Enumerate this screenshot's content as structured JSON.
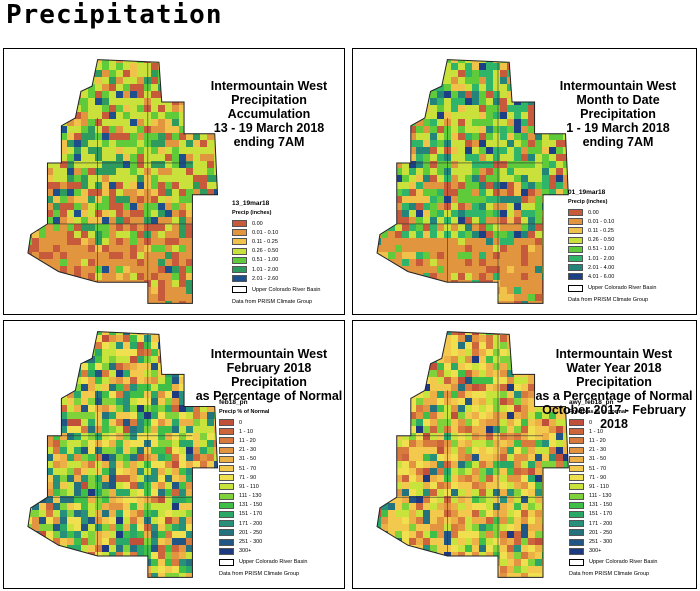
{
  "page_title": "Precipitation",
  "panels": [
    {
      "id": "acc",
      "title": [
        "Intermountain West",
        "Precipitation Accumulation",
        "13 - 19 March 2018",
        "ending 7AM"
      ],
      "legend_name": "13_19mar18",
      "legend_unit": "Precip (inches)",
      "classes": [
        "0.00",
        "0.01 - 0.10",
        "0.11 - 0.25",
        "0.26 - 0.50",
        "0.51 - 1.00",
        "1.01 - 2.00",
        "2.01 - 2.60"
      ],
      "colors": [
        "#c85a3c",
        "#e0953e",
        "#f0c24a",
        "#c9e13a",
        "#5fcb3a",
        "#2e9a5e",
        "#1d4f8c"
      ],
      "basin_label": "Upper Colorado River Basin",
      "source": "Data from PRISM Climate Group"
    },
    {
      "id": "mtd",
      "title": [
        "Intermountain West",
        "Month to Date Precipitation",
        "1 - 19 March 2018",
        "ending 7AM"
      ],
      "legend_name": "01_19mar18",
      "legend_unit": "Precip (inches)",
      "classes": [
        "0.00",
        "0.01 - 0.10",
        "0.11 - 0.25",
        "0.26 - 0.50",
        "0.51 - 1.00",
        "1.01 - 2.00",
        "2.01 - 4.00",
        "4.01 - 6.00"
      ],
      "colors": [
        "#c85a3c",
        "#e0953e",
        "#f0c24a",
        "#c9e13a",
        "#5fcb3a",
        "#2fb56a",
        "#23857a",
        "#1d3f86"
      ],
      "basin_label": "Upper Colorado River Basin",
      "source": "Data from PRISM Climate Group"
    },
    {
      "id": "feb",
      "title": [
        "Intermountain West",
        "February 2018 Precipitation",
        "as  Percentage of Normal"
      ],
      "legend_name": "feb18_pn",
      "legend_unit": "Precip % of Normal",
      "classes": [
        "0",
        "1 - 10",
        "11 - 20",
        "21 - 30",
        "31 - 50",
        "51 - 70",
        "71 - 90",
        "91 - 110",
        "111 - 130",
        "131 - 150",
        "151 - 170",
        "171 - 200",
        "201 - 250",
        "251 - 300",
        "300+"
      ],
      "colors": [
        "#c0503a",
        "#cc643c",
        "#d87a3e",
        "#e29440",
        "#ecb046",
        "#f2c94c",
        "#f0e050",
        "#c8e43c",
        "#7fd23a",
        "#3fbf48",
        "#2aa868",
        "#26907a",
        "#23727e",
        "#215584",
        "#1d3a80"
      ],
      "basin_label": "Upper Colorado River Basin",
      "source": "Data from PRISM Climate Group"
    },
    {
      "id": "wy",
      "title": [
        "Intermountain West",
        "Water Year 2018 Precipitation",
        "as a Percentage of Normal",
        "October 2017 - February 2018"
      ],
      "legend_name": "awy_feb18_pn",
      "legend_unit": "Precip as % of normal",
      "classes": [
        "0",
        "1 - 10",
        "11 - 20",
        "21 - 30",
        "31 - 50",
        "51 - 70",
        "71 - 90",
        "91 - 110",
        "111 - 130",
        "131 - 150",
        "151 - 170",
        "171 - 200",
        "201 - 250",
        "251 - 300",
        "300+"
      ],
      "colors": [
        "#c0503a",
        "#cc643c",
        "#d87a3e",
        "#e29440",
        "#ecb046",
        "#f2c94c",
        "#f0e050",
        "#c8e43c",
        "#7fd23a",
        "#3fbf48",
        "#2aa868",
        "#26907a",
        "#23727e",
        "#215584",
        "#1d3a80"
      ],
      "basin_label": "Upper Colorado River Basin",
      "source": "Data from PRISM Climate Group"
    }
  ]
}
